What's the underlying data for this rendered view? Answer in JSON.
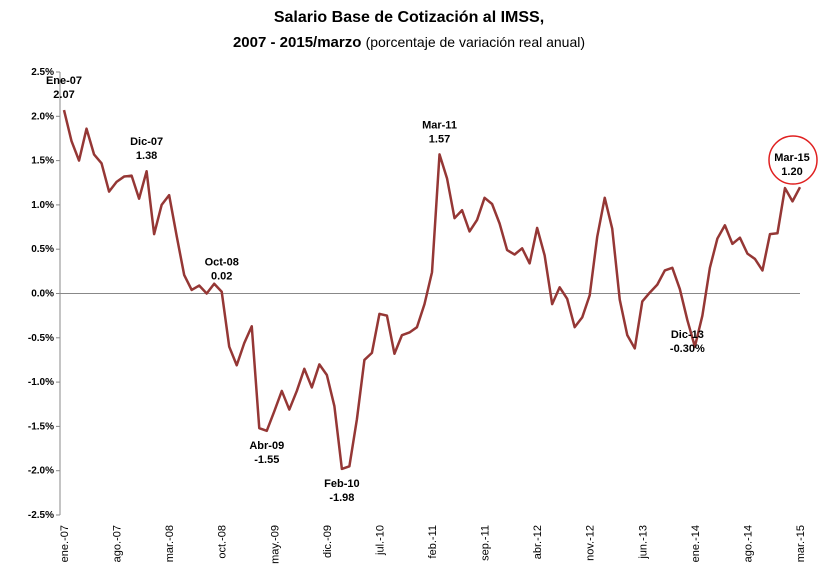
{
  "chart_data": {
    "type": "line",
    "title": "Salario Base de Cotización al IMSS,",
    "subtitle": "2007 - 2015/marzo",
    "subtitle_note": "(porcentaje de variación real anual)",
    "categories": [
      "ene.-07",
      null,
      null,
      null,
      null,
      null,
      null,
      "ago.-07",
      null,
      null,
      null,
      null,
      null,
      null,
      "mar.-08",
      null,
      null,
      null,
      null,
      null,
      null,
      "oct.-08",
      null,
      null,
      null,
      null,
      null,
      null,
      "may.-09",
      null,
      null,
      null,
      null,
      null,
      null,
      "dic.-09",
      null,
      null,
      null,
      null,
      null,
      null,
      "jul.-10",
      null,
      null,
      null,
      null,
      null,
      null,
      "feb.-11",
      null,
      null,
      null,
      null,
      null,
      null,
      "sep.-11",
      null,
      null,
      null,
      null,
      null,
      null,
      "abr.-12",
      null,
      null,
      null,
      null,
      null,
      null,
      "nov.-12",
      null,
      null,
      null,
      null,
      null,
      null,
      "jun.-13",
      null,
      null,
      null,
      null,
      null,
      null,
      "ene.-14",
      null,
      null,
      null,
      null,
      null,
      null,
      "ago.-14",
      null,
      null,
      null,
      null,
      null,
      null,
      "mar.-15"
    ],
    "series": [
      {
        "name": "Salario Base de Cotización",
        "color": "#953735",
        "values": [
          2.07,
          1.72,
          1.5,
          1.86,
          1.57,
          1.47,
          1.15,
          1.26,
          1.32,
          1.33,
          1.07,
          1.38,
          0.67,
          1.0,
          1.11,
          0.65,
          0.21,
          0.04,
          0.09,
          0.0,
          0.11,
          0.02,
          -0.6,
          -0.81,
          -0.56,
          -0.37,
          -1.52,
          -1.55,
          -1.33,
          -1.1,
          -1.31,
          -1.1,
          -0.85,
          -1.06,
          -0.8,
          -0.92,
          -1.27,
          -1.98,
          -1.95,
          -1.42,
          -0.75,
          -0.67,
          -0.23,
          -0.25,
          -0.68,
          -0.47,
          -0.44,
          -0.38,
          -0.12,
          0.24,
          1.57,
          1.3,
          0.85,
          0.94,
          0.7,
          0.83,
          1.08,
          1.01,
          0.79,
          0.49,
          0.44,
          0.51,
          0.34,
          0.74,
          0.43,
          -0.12,
          0.07,
          -0.06,
          -0.38,
          -0.27,
          -0.02,
          0.64,
          1.08,
          0.73,
          -0.07,
          -0.47,
          -0.62,
          -0.09,
          0.01,
          0.1,
          0.26,
          0.29,
          0.05,
          -0.3,
          -0.6,
          -0.25,
          0.29,
          0.62,
          0.77,
          0.56,
          0.63,
          0.45,
          0.39,
          0.26,
          0.67,
          0.68,
          1.19,
          1.04,
          1.2
        ],
        "point_labels": {
          "0": "Ene-07",
          "11": "Dic-07",
          "21": "Oct-08",
          "27": "Abr-09",
          "37": "Feb-10",
          "50": "Mar-11",
          "83": "Dic-13",
          "98": "Mar-15"
        },
        "value_labels": {
          "0": "2.07",
          "11": "1.38",
          "21": "0.02",
          "27": "-1.55",
          "37": "-1.98",
          "50": "1.57",
          "83": "-0.30%",
          "98": "1.20"
        }
      }
    ],
    "ylim": [
      -2.5,
      2.5
    ],
    "yticks": [
      {
        "value": -2.5,
        "label": "-2.5%"
      },
      {
        "value": -2.0,
        "label": "-2.0%"
      },
      {
        "value": -1.5,
        "label": "-1.5%"
      },
      {
        "value": -1.0,
        "label": "-1.0%"
      },
      {
        "value": -0.5,
        "label": "-0.5%"
      },
      {
        "value": 0,
        "label": "0.0%"
      },
      {
        "value": 0.5,
        "label": "0.5%"
      },
      {
        "value": 1.0,
        "label": "1.0%"
      },
      {
        "value": 1.5,
        "label": "1.5%"
      },
      {
        "value": 2.0,
        "label": "2.0%"
      },
      {
        "value": 2.5,
        "label": "2.5%"
      }
    ],
    "grid": false
  }
}
